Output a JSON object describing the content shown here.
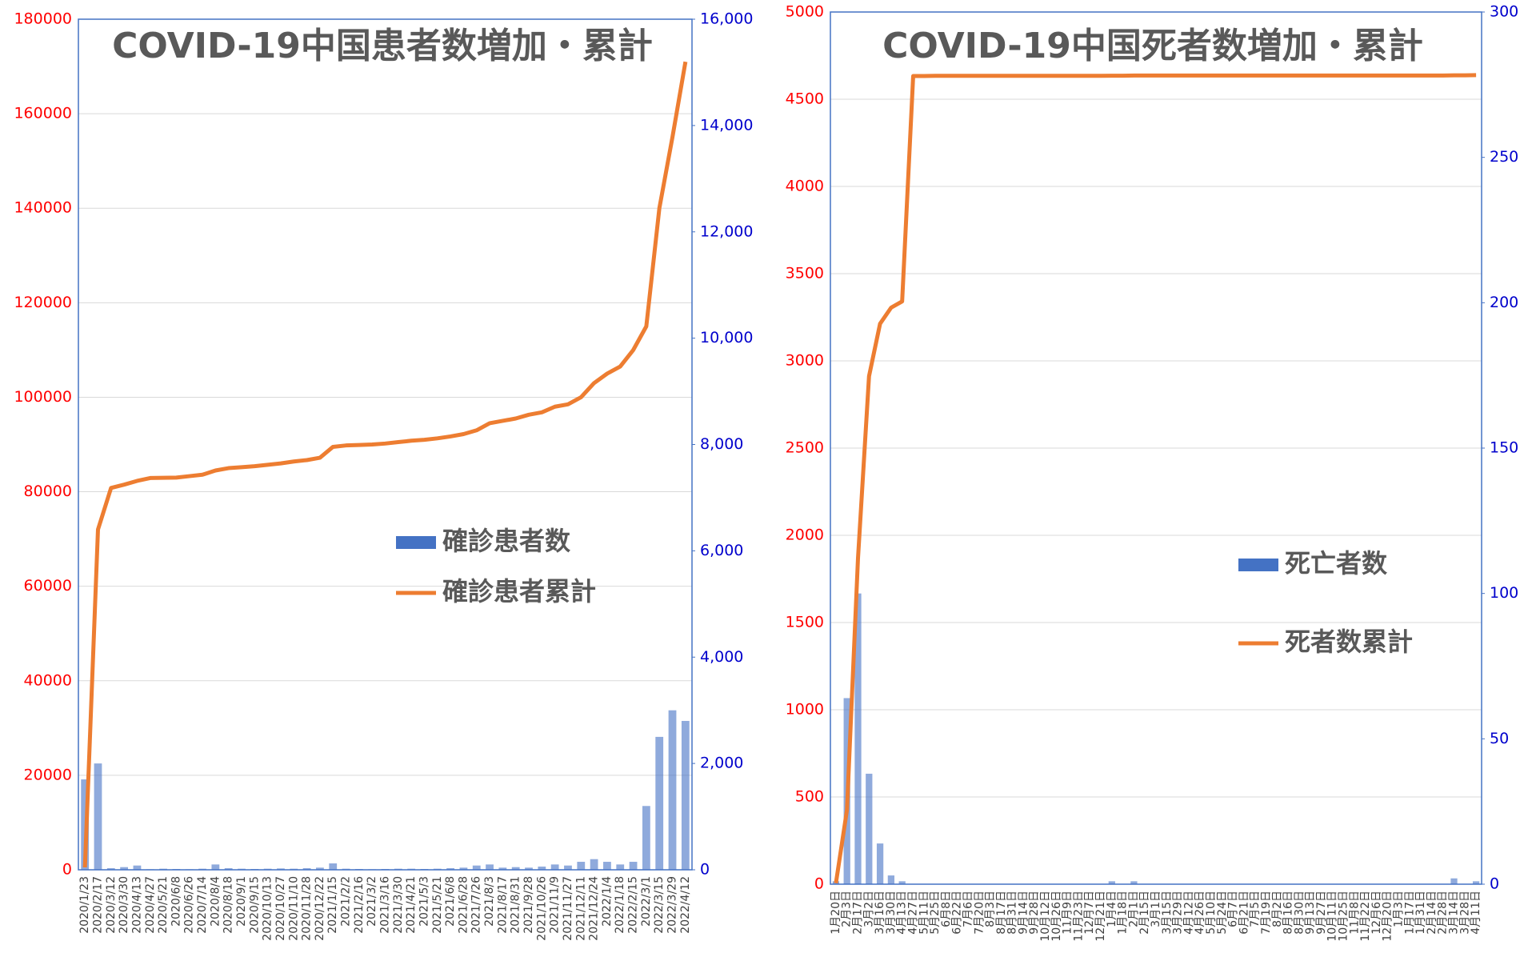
{
  "chart_data": [
    {
      "type": "combo",
      "title": "COVID-19中国患者数増加・累計",
      "categories": [
        "2020/1/23",
        "2020/2/17",
        "2020/3/12",
        "2020/3/30",
        "2020/4/13",
        "2020/4/27",
        "2020/5/21",
        "2020/6/8",
        "2020/6/26",
        "2020/7/14",
        "2020/8/4",
        "2020/8/18",
        "2020/9/1",
        "2020/9/15",
        "2020/10/13",
        "2020/10/27",
        "2020/11/10",
        "2020/11/28",
        "2020/12/22",
        "2021/1/15",
        "2021/2/2",
        "2021/2/16",
        "2021/3/2",
        "2021/3/16",
        "2021/3/30",
        "2021/4/21",
        "2021/5/3",
        "2021/5/21",
        "2021/6/8",
        "2021/6/28",
        "2021/7/26",
        "2021/8/3",
        "2021/8/17",
        "2021/8/31",
        "2021/9/28",
        "2021/10/26",
        "2021/11/9",
        "2021/11/27",
        "2021/12/11",
        "2021/12/24",
        "2022/1/4",
        "2022/1/18",
        "2022/2/15",
        "2022/3/1",
        "2022/3/15",
        "2022/3/29",
        "2022/4/12"
      ],
      "series": [
        {
          "name": "確診患者数",
          "type": "bar",
          "axis": "y2",
          "color": "#4472c4",
          "values": [
            1700,
            2000,
            30,
            50,
            80,
            10,
            20,
            15,
            10,
            20,
            100,
            30,
            20,
            15,
            20,
            25,
            20,
            30,
            40,
            120,
            20,
            15,
            10,
            15,
            20,
            20,
            15,
            20,
            30,
            40,
            80,
            100,
            40,
            50,
            40,
            60,
            100,
            80,
            150,
            200,
            150,
            100,
            150,
            1200,
            2500,
            3000,
            2800
          ]
        },
        {
          "name": "確診患者累計",
          "type": "line",
          "color": "#ed7d31",
          "values": [
            500,
            72000,
            80800,
            81500,
            82300,
            82900,
            82950,
            83000,
            83300,
            83600,
            84500,
            85000,
            85200,
            85400,
            85700,
            86000,
            86400,
            86700,
            87200,
            89500,
            89800,
            89900,
            90000,
            90200,
            90500,
            90800,
            91000,
            91300,
            91700,
            92200,
            93000,
            94500,
            95000,
            95500,
            96300,
            96800,
            98000,
            98500,
            100000,
            103000,
            105000,
            106500,
            110000,
            115000,
            140000,
            155000,
            171000
          ]
        }
      ],
      "ylim": [
        0,
        180000
      ],
      "yticks": [
        0,
        20000,
        40000,
        60000,
        80000,
        100000,
        120000,
        140000,
        160000,
        180000
      ],
      "y2lim": [
        0,
        16000
      ],
      "y2ticks": [
        0,
        {
          "value": 2000,
          "label": "2,000"
        },
        {
          "value": 4000,
          "label": "4,000"
        },
        {
          "value": 6000,
          "label": "6,000"
        },
        {
          "value": 8000,
          "label": "8,000"
        },
        {
          "value": 10000,
          "label": "10,000"
        },
        {
          "value": 12000,
          "label": "12,000"
        },
        {
          "value": 14000,
          "label": "14,000"
        },
        {
          "value": 16000,
          "label": "16,000"
        }
      ],
      "ytick_color": "#ff0000",
      "y2tick_color": "#0000cc",
      "grid": true
    },
    {
      "type": "combo",
      "title": "COVID-19中国死者数増加・累計",
      "categories": [
        "1月20日",
        "2月3日",
        "2月17日",
        "3月2日",
        "3月16日",
        "3月30日",
        "4月13日",
        "4月27日",
        "5月11日",
        "5月25日",
        "6月8日",
        "6月22日",
        "7月6日",
        "7月20日",
        "8月3日",
        "8月17日",
        "8月31日",
        "9月14日",
        "9月28日",
        "10月12日",
        "10月26日",
        "11月9日",
        "11月23日",
        "12月7日",
        "12月21日",
        "1月4日",
        "1月18日",
        "2月1日",
        "2月15日",
        "3月1日",
        "3月15日",
        "3月29日",
        "4月12日",
        "4月26日",
        "5月10日",
        "5月24日",
        "6月7日",
        "6月21日",
        "7月5日",
        "7月19日",
        "8月2日",
        "8月16日",
        "8月30日",
        "9月13日",
        "9月27日",
        "10月11日",
        "10月25日",
        "11月8日",
        "11月22日",
        "12月6日",
        "12月20日",
        "1月3日",
        "1月17日",
        "1月31日",
        "2月14日",
        "2月28日",
        "3月14日",
        "3月28日",
        "4月11日"
      ],
      "series": [
        {
          "name": "死亡者数",
          "type": "bar",
          "axis": "y2",
          "color": "#4472c4",
          "values": [
            1,
            64,
            100,
            38,
            14,
            3,
            1,
            0,
            0,
            0,
            0,
            0,
            0,
            0,
            0,
            0,
            0,
            0,
            0,
            0,
            0,
            0,
            0,
            0,
            0,
            1,
            0,
            1,
            0,
            0,
            0,
            0,
            0,
            0,
            0,
            0,
            0,
            0,
            0,
            0,
            0,
            0,
            0,
            0,
            0,
            0,
            0,
            0,
            0,
            0,
            0,
            0,
            0,
            0,
            0,
            0,
            2,
            0,
            1
          ]
        },
        {
          "name": "死者数累計",
          "type": "line",
          "color": "#ed7d31",
          "values": [
            6,
            425,
            1868,
            2912,
            3213,
            3305,
            3341,
            4633,
            4633,
            4634,
            4634,
            4634,
            4634,
            4634,
            4634,
            4634,
            4634,
            4634,
            4634,
            4634,
            4634,
            4634,
            4634,
            4634,
            4634,
            4635,
            4635,
            4636,
            4636,
            4636,
            4636,
            4636,
            4636,
            4636,
            4636,
            4636,
            4636,
            4636,
            4636,
            4636,
            4636,
            4636,
            4636,
            4636,
            4636,
            4636,
            4636,
            4636,
            4636,
            4636,
            4636,
            4636,
            4636,
            4636,
            4636,
            4636,
            4637,
            4637,
            4638
          ]
        }
      ],
      "ylim": [
        0,
        5000
      ],
      "yticks": [
        0,
        500,
        1000,
        1500,
        2000,
        2500,
        3000,
        3500,
        4000,
        4500,
        5000
      ],
      "y2lim": [
        0,
        300
      ],
      "y2ticks": [
        0,
        50,
        100,
        150,
        200,
        250,
        300
      ],
      "ytick_color": "#ff0000",
      "y2tick_color": "#0000cc",
      "grid": true
    }
  ]
}
